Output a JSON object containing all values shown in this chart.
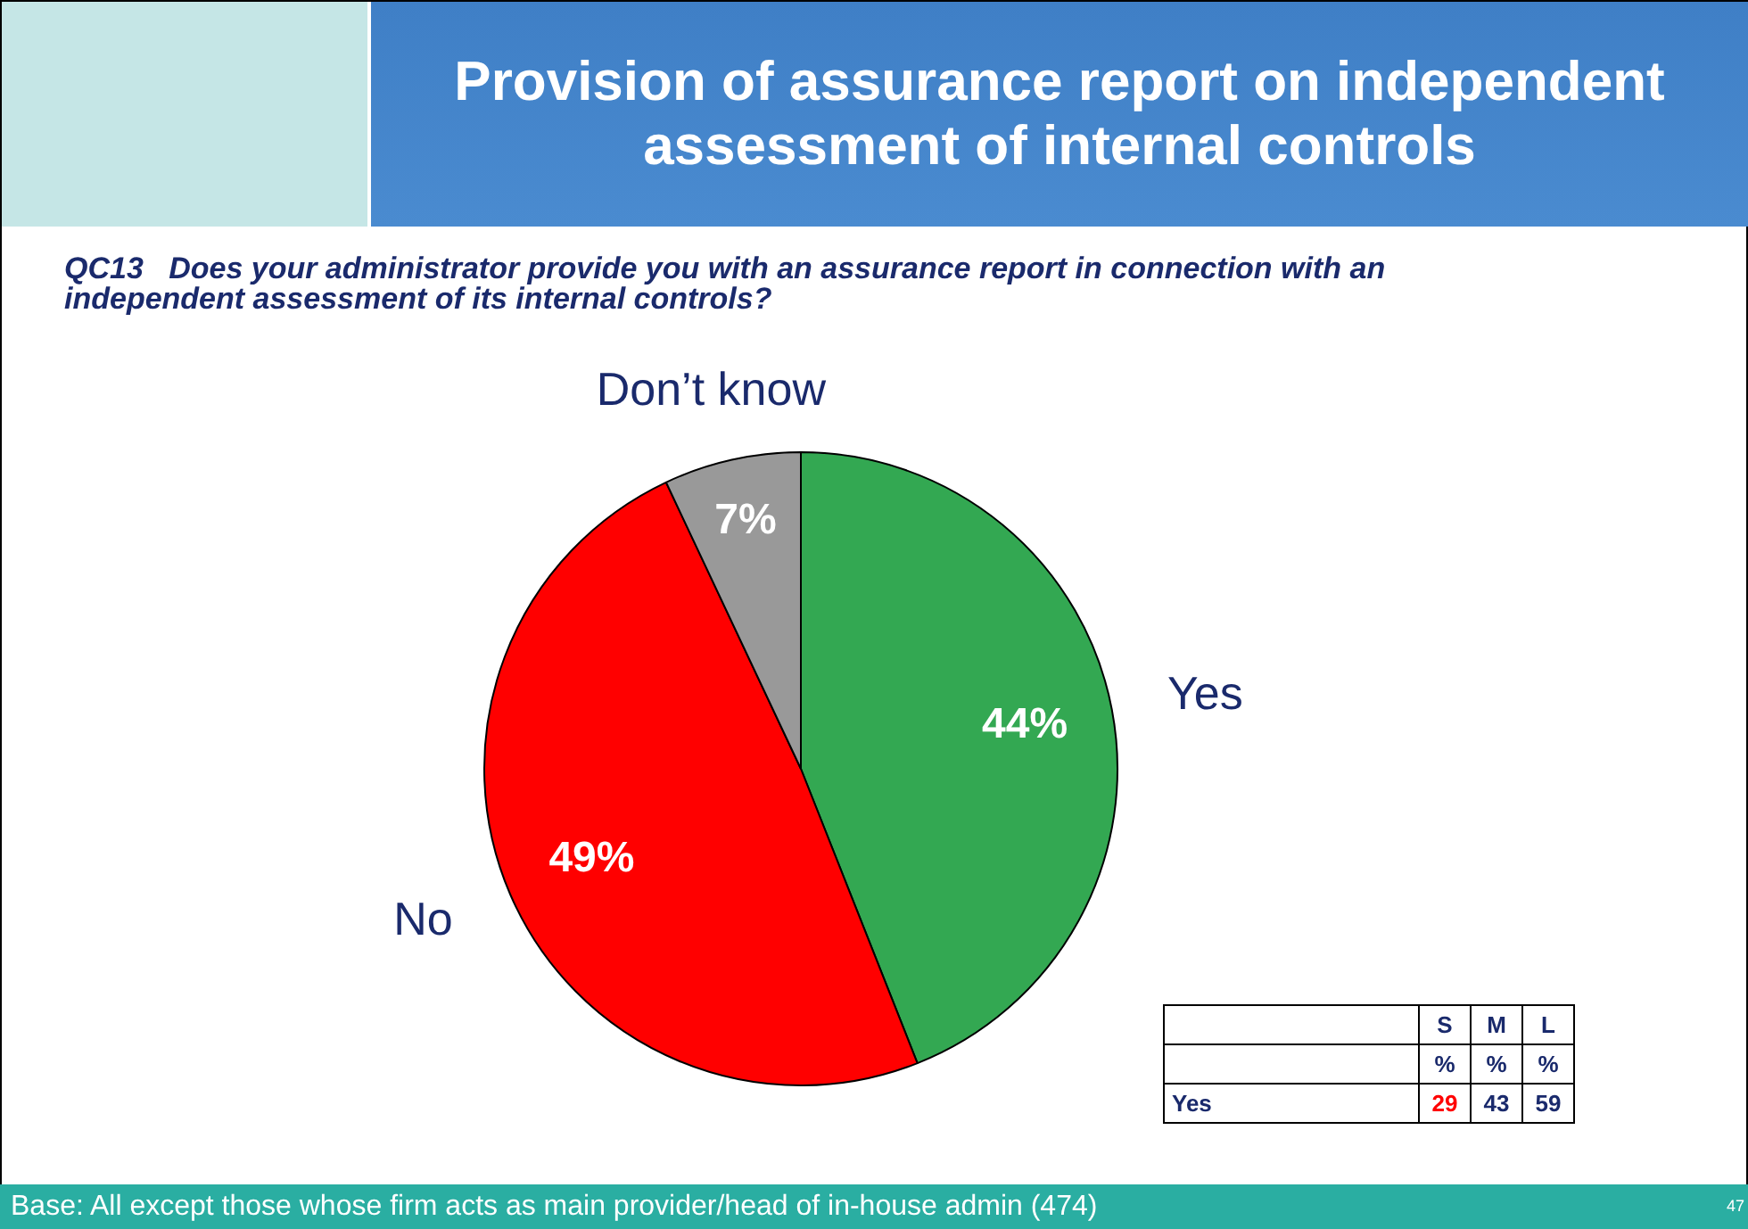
{
  "chart_data": [
    {
      "type": "pie",
      "title": "Provision of assurance report on independent assessment of internal controls",
      "subtitle": "QC13   Does your administrator provide you with an assurance report in connection with an independent assessment of its internal controls?",
      "categories": [
        "Yes",
        "No",
        "Don’t know"
      ],
      "values": [
        44,
        49,
        7
      ],
      "colors": [
        "#33a852",
        "#ff0000",
        "#999999"
      ],
      "value_labels": [
        "44%",
        "49%",
        "7%"
      ],
      "legend": false,
      "annotations": [
        "Base: All except those whose firm acts as main provider/head of in-house admin (474)",
        "47"
      ]
    },
    {
      "type": "other",
      "categories": [
        "S",
        "M",
        "L"
      ],
      "ylabel": "%",
      "data_labels": true,
      "series": [
        {
          "name": "Yes",
          "values": [
            29,
            43,
            59
          ],
          "colors": [
            "#ff0000",
            "#1a2a6c",
            "#1a2a6c"
          ]
        }
      ]
    }
  ]
}
